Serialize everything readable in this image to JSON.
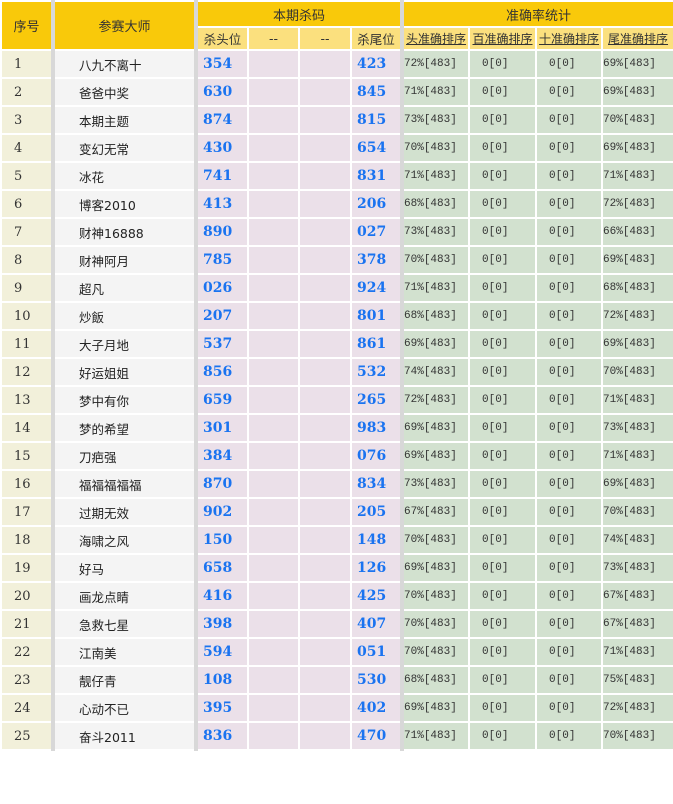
{
  "header": {
    "no": "序号",
    "master": "参赛大师",
    "kill_group": "本期杀码",
    "stats_group": "准确率统计",
    "kill_head": "杀头位",
    "blank1": "--",
    "blank2": "--",
    "kill_tail": "杀尾位",
    "head_rank": "头准确排序",
    "hundred_rank": "百准确排序",
    "ten_rank": "十准确排序",
    "tail_rank": "尾准确排序"
  },
  "colors": {
    "header": "#f9c90a",
    "subheader": "#fbe07e",
    "kill_number": "#1a73f0",
    "stats_bg": "#d2e1cf",
    "kill_bg": "#ebe0e9"
  },
  "rows": [
    [
      "1",
      "八九不离十",
      "354",
      "423",
      "72%[483]",
      "0[0]",
      "0[0]",
      "69%[483]"
    ],
    [
      "2",
      "爸爸中奖",
      "630",
      "845",
      "71%[483]",
      "0[0]",
      "0[0]",
      "69%[483]"
    ],
    [
      "3",
      "本期主题",
      "874",
      "815",
      "73%[483]",
      "0[0]",
      "0[0]",
      "70%[483]"
    ],
    [
      "4",
      "变幻无常",
      "430",
      "654",
      "70%[483]",
      "0[0]",
      "0[0]",
      "69%[483]"
    ],
    [
      "5",
      "冰花",
      "741",
      "831",
      "71%[483]",
      "0[0]",
      "0[0]",
      "71%[483]"
    ],
    [
      "6",
      "博客2010",
      "413",
      "206",
      "68%[483]",
      "0[0]",
      "0[0]",
      "72%[483]"
    ],
    [
      "7",
      "财神16888",
      "890",
      "027",
      "73%[483]",
      "0[0]",
      "0[0]",
      "66%[483]"
    ],
    [
      "8",
      "财神阿月",
      "785",
      "378",
      "70%[483]",
      "0[0]",
      "0[0]",
      "69%[483]"
    ],
    [
      "9",
      "超凡",
      "026",
      "924",
      "71%[483]",
      "0[0]",
      "0[0]",
      "68%[483]"
    ],
    [
      "10",
      "炒飯",
      "207",
      "801",
      "68%[483]",
      "0[0]",
      "0[0]",
      "72%[483]"
    ],
    [
      "11",
      "大子月地",
      "537",
      "861",
      "69%[483]",
      "0[0]",
      "0[0]",
      "69%[483]"
    ],
    [
      "12",
      "好运姐姐",
      "856",
      "532",
      "74%[483]",
      "0[0]",
      "0[0]",
      "70%[483]"
    ],
    [
      "13",
      "梦中有你",
      "659",
      "265",
      "72%[483]",
      "0[0]",
      "0[0]",
      "71%[483]"
    ],
    [
      "14",
      "梦的希望",
      "301",
      "983",
      "69%[483]",
      "0[0]",
      "0[0]",
      "73%[483]"
    ],
    [
      "15",
      "刀疤强",
      "384",
      "076",
      "69%[483]",
      "0[0]",
      "0[0]",
      "71%[483]"
    ],
    [
      "16",
      "福福福福福",
      "870",
      "834",
      "73%[483]",
      "0[0]",
      "0[0]",
      "69%[483]"
    ],
    [
      "17",
      "过期无效",
      "902",
      "205",
      "67%[483]",
      "0[0]",
      "0[0]",
      "70%[483]"
    ],
    [
      "18",
      "海啸之风",
      "150",
      "148",
      "70%[483]",
      "0[0]",
      "0[0]",
      "74%[483]"
    ],
    [
      "19",
      "好马",
      "658",
      "126",
      "69%[483]",
      "0[0]",
      "0[0]",
      "73%[483]"
    ],
    [
      "20",
      "画龙点睛",
      "416",
      "425",
      "70%[483]",
      "0[0]",
      "0[0]",
      "67%[483]"
    ],
    [
      "21",
      "急救七星",
      "398",
      "407",
      "70%[483]",
      "0[0]",
      "0[0]",
      "67%[483]"
    ],
    [
      "22",
      "江南美",
      "594",
      "051",
      "70%[483]",
      "0[0]",
      "0[0]",
      "71%[483]"
    ],
    [
      "23",
      "靓仔青",
      "108",
      "530",
      "68%[483]",
      "0[0]",
      "0[0]",
      "75%[483]"
    ],
    [
      "24",
      "心动不已",
      "395",
      "402",
      "69%[483]",
      "0[0]",
      "0[0]",
      "72%[483]"
    ],
    [
      "25",
      "奋斗2011",
      "836",
      "470",
      "71%[483]",
      "0[0]",
      "0[0]",
      "70%[483]"
    ]
  ]
}
